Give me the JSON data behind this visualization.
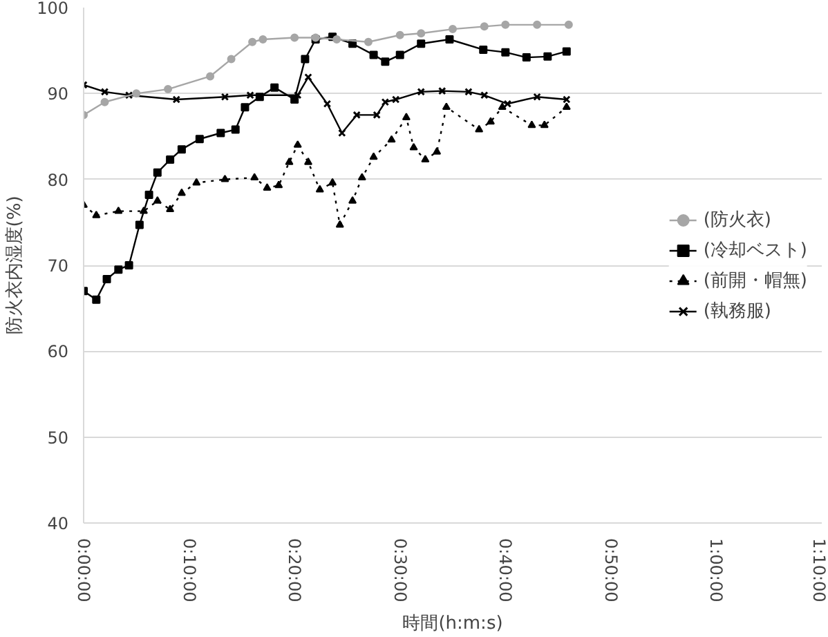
{
  "chart_data": {
    "type": "line",
    "xlabel": "時間(h:m:s)",
    "ylabel": "防火衣内湿度(%)",
    "xlim": [
      0,
      70
    ],
    "ylim": [
      40,
      100
    ],
    "xticks": [
      {
        "value": 0,
        "label": "0:00:00"
      },
      {
        "value": 10,
        "label": "0:10:00"
      },
      {
        "value": 20,
        "label": "0:20:00"
      },
      {
        "value": 30,
        "label": "0:30:00"
      },
      {
        "value": 40,
        "label": "0:40:00"
      },
      {
        "value": 50,
        "label": "0:50:00"
      },
      {
        "value": 60,
        "label": "1:00:00"
      },
      {
        "value": 70,
        "label": "1:10:00"
      }
    ],
    "yticks": [
      40,
      50,
      60,
      70,
      80,
      90,
      100
    ],
    "grid": "y",
    "legend": "right",
    "series": [
      {
        "name": "(防火衣)",
        "color": "#a6a6a6",
        "marker": "circle",
        "x": [
          0,
          2,
          5,
          8,
          12,
          14,
          16,
          17,
          20,
          22,
          24,
          27,
          30,
          32,
          35,
          38,
          40,
          43,
          46
        ],
        "values": [
          87.5,
          89,
          90,
          90.5,
          92,
          94,
          96,
          96.3,
          96.5,
          96.5,
          96.3,
          96,
          96.8,
          97,
          97.5,
          97.8,
          98,
          98,
          98
        ]
      },
      {
        "name": "(冷却ベスト)",
        "color": "#000000",
        "marker": "square",
        "x": [
          0,
          1.2,
          2.2,
          3.3,
          4.3,
          5.3,
          6.2,
          7,
          8.2,
          9.3,
          11,
          13,
          14.4,
          15.3,
          16.7,
          18.1,
          20,
          21,
          22,
          23.6,
          25.5,
          27.5,
          28.6,
          30,
          32,
          34.7,
          37.9,
          40,
          42,
          44,
          45.8
        ],
        "values": [
          67,
          66,
          68.4,
          69.5,
          70,
          74.7,
          78.2,
          80.8,
          82.3,
          83.5,
          84.7,
          85.4,
          85.8,
          88.4,
          89.6,
          90.7,
          89.3,
          94,
          96.3,
          96.6,
          95.8,
          94.5,
          93.7,
          94.5,
          95.8,
          96.3,
          95.1,
          94.8,
          94.2,
          94.3,
          94.9
        ]
      },
      {
        "name": "(前開・帽無)",
        "color": "#000000",
        "marker": "triangle",
        "line_style": "dotted",
        "x": [
          0,
          1.2,
          3.3,
          5.7,
          7,
          8.2,
          9.3,
          10.7,
          13.4,
          16.2,
          17.4,
          18.5,
          19.5,
          20.3,
          21.3,
          22.4,
          23.6,
          24.3,
          25.5,
          26.4,
          27.5,
          29.2,
          30.6,
          31.3,
          32.4,
          33.5,
          34.4,
          37.5,
          38.6,
          39.7,
          42.5,
          43.7,
          45.8
        ],
        "values": [
          77,
          75.8,
          76.3,
          76.3,
          77.5,
          76.5,
          78.4,
          79.6,
          80,
          80.2,
          79,
          79.3,
          82,
          84,
          82,
          78.8,
          79.6,
          74.7,
          77.5,
          80.2,
          82.6,
          84.6,
          87.2,
          83.7,
          82.3,
          83.2,
          88.4,
          85.8,
          86.7,
          88.4,
          86.3,
          86.3,
          88.4
        ]
      },
      {
        "name": "(執務服)",
        "color": "#000000",
        "marker": "cross",
        "x": [
          0,
          2,
          4.3,
          8.8,
          13.4,
          15.8,
          20.3,
          21.3,
          23.1,
          24.5,
          25.9,
          27.8,
          28.6,
          29.6,
          32,
          34,
          36.5,
          38,
          40.2,
          43,
          45.8
        ],
        "values": [
          91,
          90.2,
          89.8,
          89.3,
          89.6,
          89.8,
          89.8,
          91.9,
          88.8,
          85.4,
          87.5,
          87.5,
          89,
          89.3,
          90.2,
          90.3,
          90.2,
          89.8,
          88.8,
          89.6,
          89.3
        ]
      }
    ]
  }
}
